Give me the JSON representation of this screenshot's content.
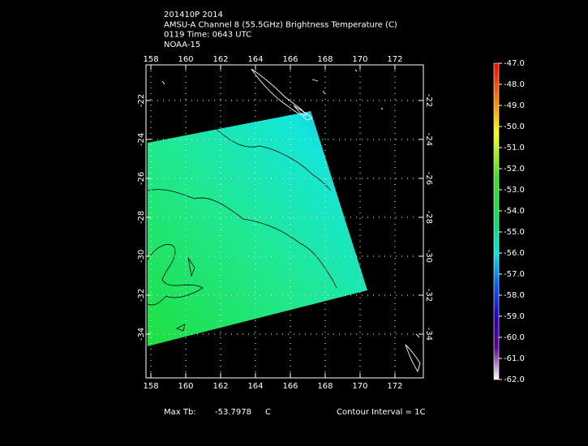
{
  "header": {
    "lines": [
      "201410P 2014",
      "AMSU-A Channel 8 (55.5GHz) Brightness Temperature (C)",
      "0119 Time: 0643 UTC",
      "NOAA-15"
    ]
  },
  "map": {
    "xlim": [
      157.72,
      173.63
    ],
    "ylim": [
      -36.25,
      -20.17
    ],
    "xticks": [
      158,
      160,
      162,
      164,
      166,
      168,
      170,
      172
    ],
    "yticks": [
      -22,
      -24,
      -26,
      -28,
      -30,
      -32,
      -34
    ]
  },
  "colorbar": {
    "lim": [
      -62,
      -47
    ],
    "ticks": [
      {
        "value": -47,
        "label": "-47.0"
      },
      {
        "value": -48,
        "label": "-48.0"
      },
      {
        "value": -49,
        "label": "-49.0"
      },
      {
        "value": -50,
        "label": "-50.0"
      },
      {
        "value": -51,
        "label": "-51.0"
      },
      {
        "value": -52,
        "label": "-52.0"
      },
      {
        "value": -53,
        "label": "-53.0"
      },
      {
        "value": -54,
        "label": "-54.0"
      },
      {
        "value": -55,
        "label": "-55.0"
      },
      {
        "value": -56,
        "label": "-56.0"
      },
      {
        "value": -57,
        "label": "-57.0"
      },
      {
        "value": -58,
        "label": "-58.0"
      },
      {
        "value": -59,
        "label": "-59.0"
      },
      {
        "value": -60,
        "label": "-60.0"
      },
      {
        "value": -61,
        "label": "-61.0"
      },
      {
        "value": -62,
        "label": "-62.0"
      }
    ]
  },
  "footer": {
    "max_label": "Max Tb:",
    "max_value": -53.7978,
    "unit": "C",
    "contour": "Contour Interval = 1C"
  }
}
